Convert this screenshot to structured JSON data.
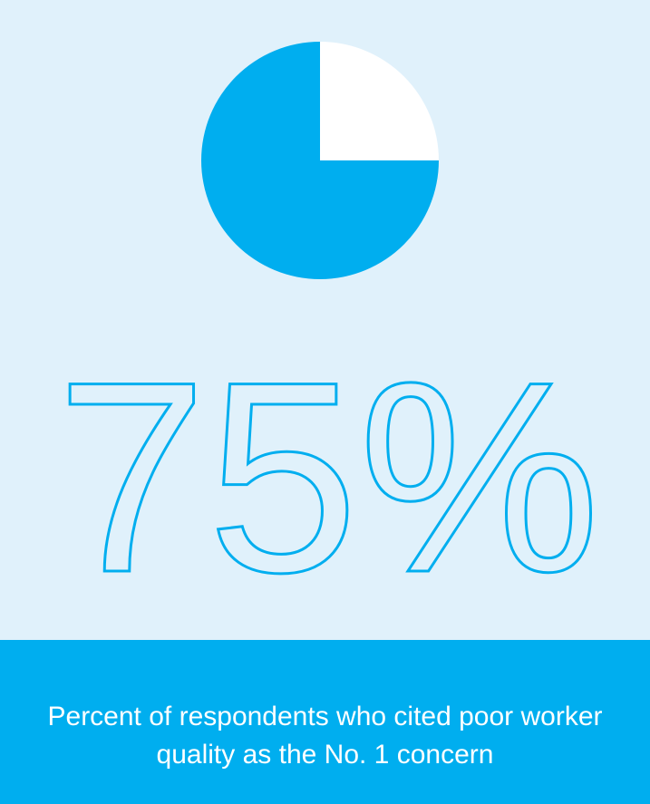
{
  "chart_data": {
    "type": "pie",
    "values": [
      75,
      25
    ],
    "value_labels": [
      "75%",
      null
    ],
    "colors": [
      "#00aeef",
      "#ffffff"
    ],
    "caption": "Percent of respondents who cited poor worker quality as the No. 1 concern"
  }
}
